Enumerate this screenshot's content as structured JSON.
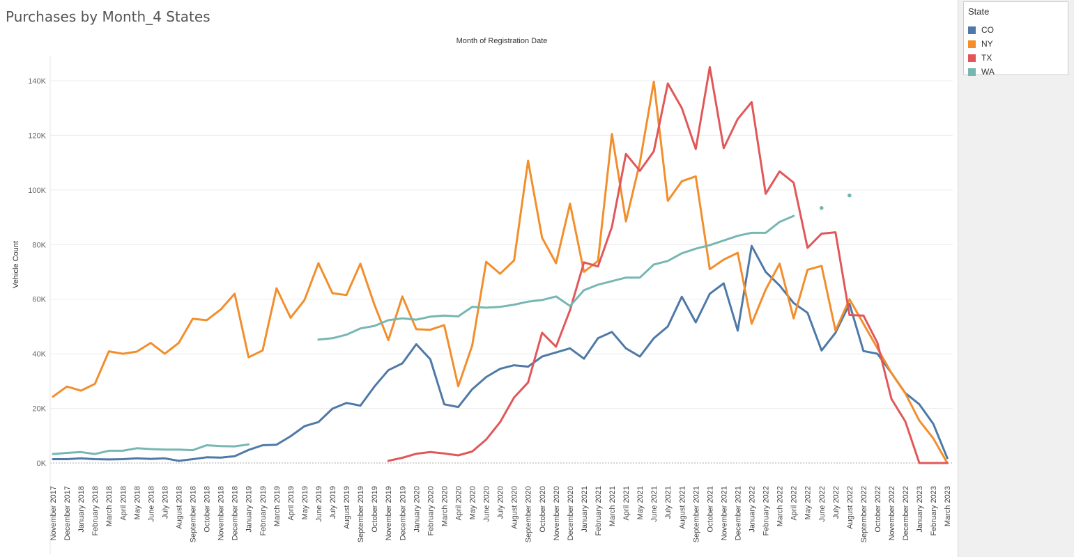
{
  "page": {
    "title": "Purchases by Month_4 States"
  },
  "legend": {
    "title": "State",
    "items": [
      {
        "label": "CO",
        "color": "#4e79a7"
      },
      {
        "label": "NY",
        "color": "#f28e2b"
      },
      {
        "label": "TX",
        "color": "#e15759"
      },
      {
        "label": "WA",
        "color": "#76b7b2"
      }
    ]
  },
  "chart_data": {
    "type": "line",
    "title": "",
    "top_axis_label": "Month of Registration Date",
    "xlabel": "",
    "ylabel": "Vehicle Count",
    "ylim": [
      0,
      150000
    ],
    "yticks": [
      0,
      20000,
      40000,
      60000,
      80000,
      100000,
      120000,
      140000
    ],
    "ytick_labels": [
      "0K",
      "20K",
      "40K",
      "60K",
      "80K",
      "100K",
      "120K",
      "140K"
    ],
    "grid": true,
    "legend_position": "top-right",
    "categories": [
      "November 2017",
      "December 2017",
      "January 2018",
      "February 2018",
      "March 2018",
      "April 2018",
      "May 2018",
      "June 2018",
      "July 2018",
      "August 2018",
      "September 2018",
      "October 2018",
      "November 2018",
      "December 2018",
      "January 2019",
      "February 2019",
      "March 2019",
      "April 2019",
      "May 2019",
      "June 2019",
      "July 2019",
      "August 2019",
      "September 2019",
      "October 2019",
      "November 2019",
      "December 2019",
      "January 2020",
      "February 2020",
      "March 2020",
      "April 2020",
      "May 2020",
      "June 2020",
      "July 2020",
      "August 2020",
      "September 2020",
      "October 2020",
      "November 2020",
      "December 2020",
      "January 2021",
      "February 2021",
      "March 2021",
      "April 2021",
      "May 2021",
      "June 2021",
      "July 2021",
      "August 2021",
      "September 2021",
      "October 2021",
      "November 2021",
      "December 2021",
      "January 2022",
      "February 2022",
      "March 2022",
      "April 2022",
      "May 2022",
      "June 2022",
      "July 2022",
      "August 2022",
      "September 2022",
      "October 2022",
      "November 2022",
      "December 2022",
      "January 2023",
      "February 2023",
      "March 2023"
    ],
    "series": [
      {
        "name": "CO",
        "color": "#4e79a7",
        "values": [
          1400,
          1400,
          1700,
          1400,
          1300,
          1400,
          1700,
          1500,
          1700,
          800,
          1400,
          2100,
          2000,
          2500,
          4800,
          6500,
          6700,
          9800,
          13500,
          15000,
          19900,
          22000,
          21000,
          28000,
          34000,
          36500,
          43500,
          38000,
          21500,
          20500,
          27000,
          31500,
          34500,
          35800,
          35300,
          39000,
          40500,
          42000,
          38200,
          45700,
          48000,
          42000,
          39000,
          45700,
          50000,
          60900,
          51500,
          62000,
          65800,
          48500,
          79500,
          70000,
          65000,
          58600,
          55000,
          41200,
          47700,
          58300,
          41000,
          40000,
          33000,
          25600,
          21500,
          14300,
          1800
        ]
      },
      {
        "name": "NY",
        "color": "#f28e2b",
        "values": [
          24300,
          28000,
          26500,
          29000,
          40900,
          40000,
          40800,
          44000,
          40000,
          44000,
          52800,
          52300,
          56200,
          62000,
          38700,
          41200,
          64000,
          53200,
          59700,
          73200,
          62200,
          61500,
          73000,
          58000,
          45000,
          61000,
          49000,
          48800,
          50500,
          28100,
          43000,
          73700,
          69300,
          74200,
          110700,
          82500,
          73200,
          95000,
          70000,
          74000,
          120500,
          88500,
          110000,
          139700,
          96000,
          103200,
          105000,
          71000,
          74500,
          77000,
          51000,
          63500,
          73000,
          53000,
          70800,
          72200,
          48500,
          60000,
          51000,
          42000,
          33000,
          25500,
          15500,
          9000,
          0
        ]
      },
      {
        "name": "TX",
        "color": "#e15759",
        "values": [
          null,
          null,
          null,
          null,
          null,
          null,
          null,
          null,
          null,
          null,
          null,
          null,
          null,
          null,
          null,
          null,
          null,
          null,
          null,
          null,
          null,
          null,
          null,
          null,
          800,
          1900,
          3400,
          4000,
          3500,
          2800,
          4200,
          8600,
          15000,
          24000,
          29500,
          47700,
          42600,
          56000,
          73500,
          72000,
          86500,
          113200,
          107000,
          114200,
          139000,
          130000,
          115000,
          145000,
          115300,
          126000,
          132200,
          98600,
          106800,
          102700,
          78800,
          84000,
          84500,
          54200,
          54000,
          44000,
          23500,
          15200,
          0,
          0,
          0
        ]
      },
      {
        "name": "WA",
        "color": "#76b7b2",
        "values": [
          3300,
          3700,
          4000,
          3300,
          4500,
          4500,
          5400,
          5100,
          4900,
          4900,
          4700,
          6500,
          6200,
          6100,
          6800,
          null,
          null,
          null,
          null,
          45200,
          45700,
          47000,
          49300,
          50200,
          52300,
          53000,
          52500,
          53600,
          54000,
          53700,
          57200,
          56900,
          57200,
          58000,
          59100,
          59700,
          61000,
          57500,
          63300,
          65300,
          66600,
          67900,
          67900,
          72700,
          74000,
          76800,
          78500,
          79800,
          81500,
          83200,
          84300,
          84300,
          88300,
          90500,
          null,
          93400,
          null,
          98000,
          null,
          null,
          null,
          null,
          null,
          null,
          null
        ]
      }
    ]
  }
}
